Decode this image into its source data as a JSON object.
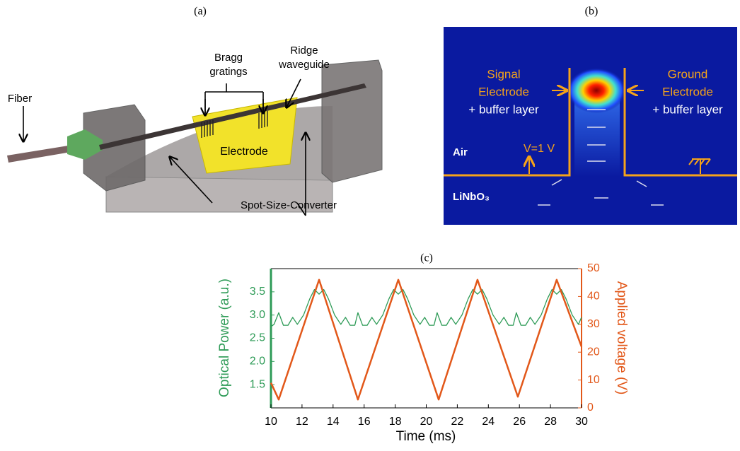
{
  "panel_a": {
    "label": "(a)",
    "labels": {
      "fiber": "Fiber",
      "bragg_gratings": [
        "Bragg",
        "gratings"
      ],
      "ridge_waveguide": [
        "Ridge",
        "waveguide"
      ],
      "electrode": "Electrode",
      "spot_size_converter": "Spot-Size-Converter"
    }
  },
  "panel_b": {
    "label": "(b)",
    "signal_electrode": [
      "Signal",
      "Electrode",
      "+ buffer layer"
    ],
    "ground_electrode": [
      "Ground",
      "Electrode",
      "+ buffer layer"
    ],
    "air": "Air",
    "voltage": "V=1 V",
    "substrate": "LiNbO₃"
  },
  "chart_data": {
    "type": "line",
    "title": "(c)",
    "x_label": "Time (ms)",
    "y_label": "Optical Power (a.u.)",
    "y2_label": "Applied voltage (V)",
    "xlim": [
      10,
      30
    ],
    "xticks": [
      10,
      12,
      14,
      16,
      18,
      20,
      22,
      24,
      26,
      28,
      30
    ],
    "ylim": [
      1.0,
      4.0
    ],
    "yticks": [
      1.5,
      {
        "value": 2,
        "label": "2.0"
      },
      2.5,
      {
        "value": 3,
        "label": "3.0"
      },
      3.5
    ],
    "y2lim": [
      0,
      50
    ],
    "y2ticks": [
      0,
      10,
      20,
      30,
      40,
      50
    ],
    "series": [
      {
        "color": "#2e9b57",
        "x": [
          10,
          10.2,
          10.5,
          10.8,
          11.1,
          11.4,
          11.7,
          12.1,
          12.5,
          12.8,
          13.1,
          13.4,
          13.7,
          14.1,
          14.5,
          14.8,
          15.1,
          15.4,
          15.6,
          15.9,
          16.2,
          16.5,
          16.8,
          17.2,
          17.6,
          17.9,
          18.2,
          18.5,
          18.8,
          19.2,
          19.6,
          19.9,
          20.2,
          20.5,
          20.7,
          21.0,
          21.3,
          21.6,
          21.9,
          22.3,
          22.7,
          23.0,
          23.3,
          23.6,
          23.9,
          24.3,
          24.7,
          25.0,
          25.3,
          25.6,
          25.8,
          26.1,
          26.4,
          26.7,
          27.0,
          27.4,
          27.8,
          28.1,
          28.4,
          28.7,
          29.0,
          29.4,
          29.8,
          30
        ],
        "values": [
          2.75,
          2.8,
          3.05,
          2.78,
          2.78,
          2.95,
          2.8,
          3.0,
          3.35,
          3.55,
          3.45,
          3.55,
          3.35,
          3.0,
          2.8,
          2.95,
          2.78,
          2.78,
          3.05,
          2.78,
          2.78,
          2.95,
          2.8,
          3.0,
          3.35,
          3.55,
          3.45,
          3.55,
          3.35,
          3.0,
          2.8,
          2.95,
          2.78,
          2.78,
          3.05,
          2.78,
          2.78,
          2.95,
          2.8,
          3.0,
          3.35,
          3.55,
          3.45,
          3.55,
          3.35,
          3.0,
          2.8,
          2.95,
          2.78,
          2.78,
          3.05,
          2.78,
          2.78,
          2.95,
          2.8,
          3.0,
          3.35,
          3.55,
          3.45,
          3.55,
          3.35,
          3.0,
          2.8,
          2.95
        ]
      },
      {
        "color": "#e2581a",
        "axis": "y2",
        "x": [
          10,
          10.5,
          13.1,
          15.6,
          18.2,
          20.8,
          23.3,
          25.9,
          28.4,
          30
        ],
        "values": [
          9,
          3,
          46,
          3,
          46,
          3,
          46,
          4,
          46,
          22
        ]
      }
    ]
  }
}
